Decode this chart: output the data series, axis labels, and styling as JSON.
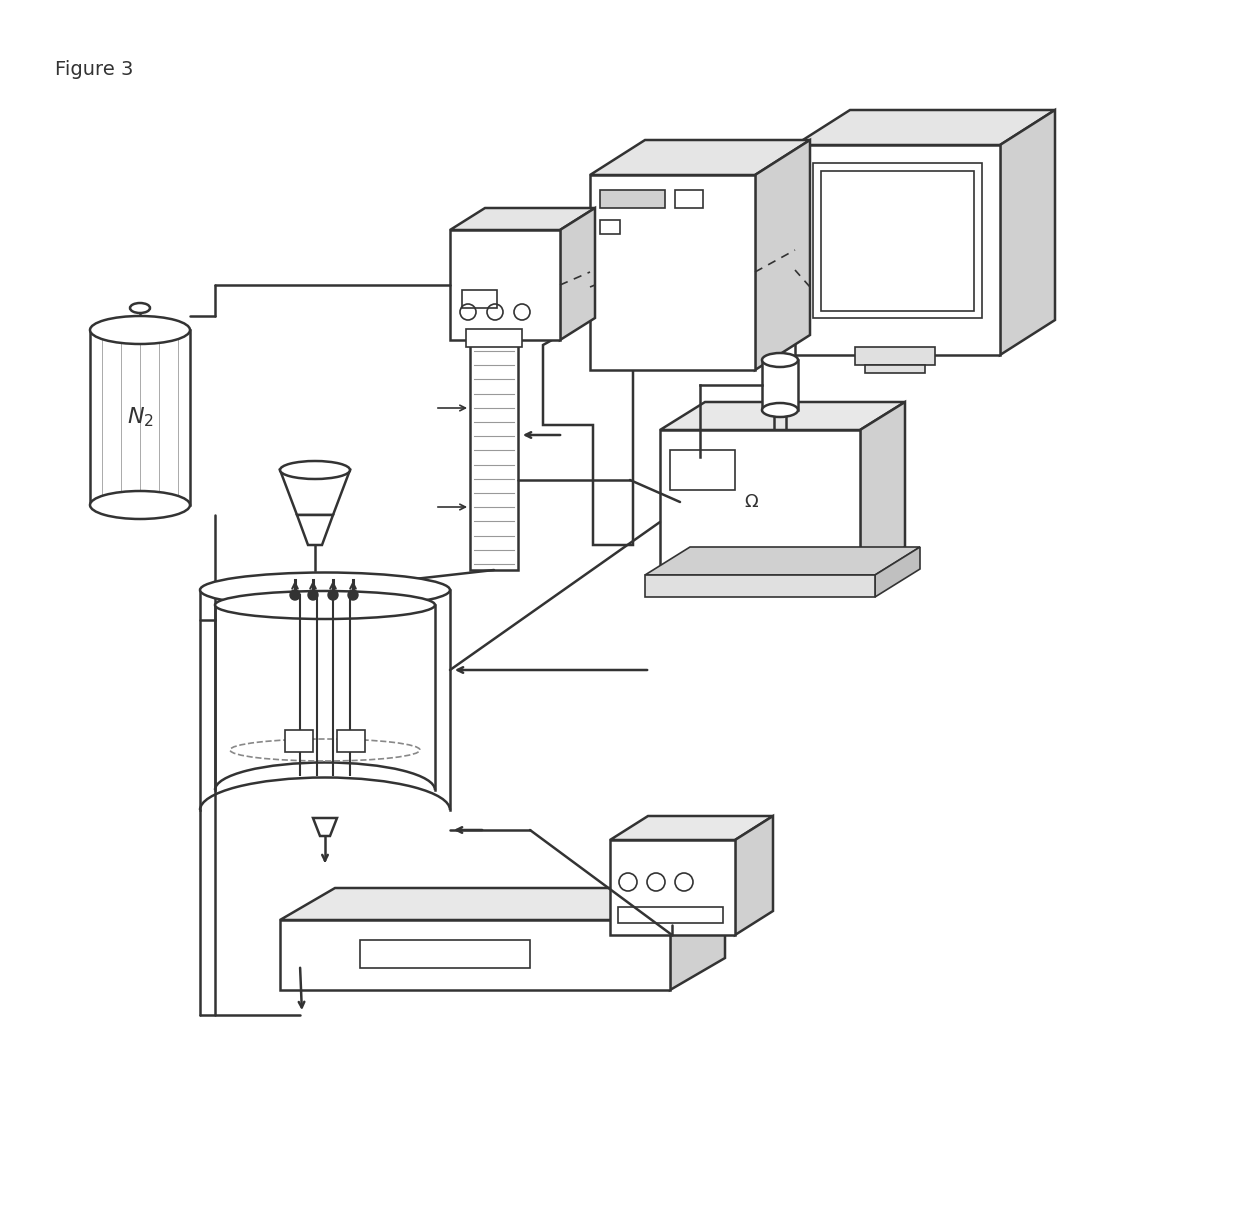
{
  "title": "Figure 3",
  "bg_color": "#ffffff",
  "line_color": "#333333",
  "lw_main": 1.8,
  "lw_thin": 1.2,
  "lw_thick": 2.2
}
